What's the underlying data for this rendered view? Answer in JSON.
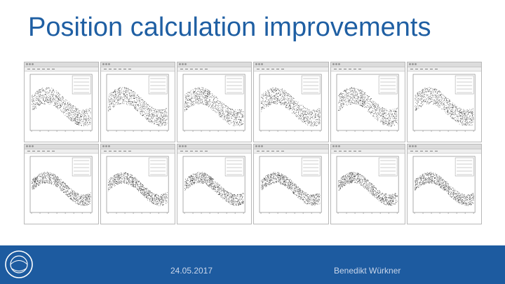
{
  "slide": {
    "title": "Position calculation improvements"
  },
  "footer": {
    "date": "24.05.2017",
    "author": "Benedikt Würkner",
    "logo_icon": "cern-logo-icon"
  },
  "windows": {
    "count": 12,
    "rows": 2,
    "columns": 6
  },
  "colors": {
    "title": "#1f5fa3",
    "footer_bg": "#1d5ba0",
    "footer_text": "#c9d6ea"
  }
}
